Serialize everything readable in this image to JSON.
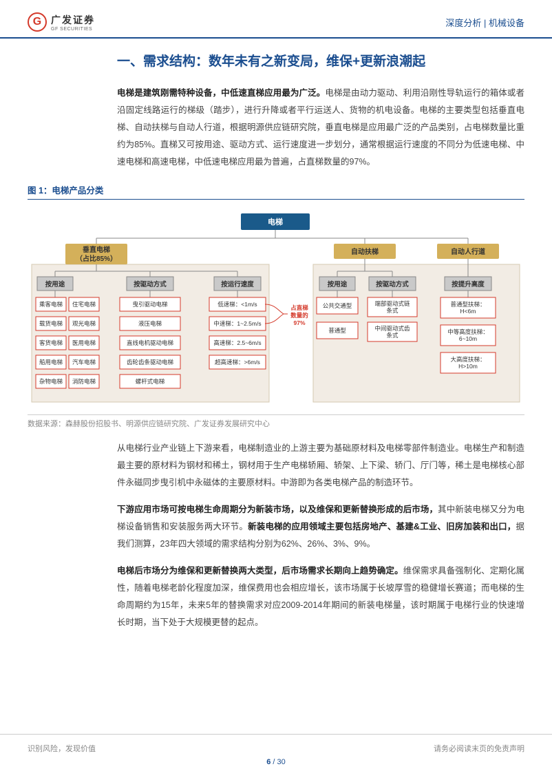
{
  "header": {
    "logo_cn": "广发证券",
    "logo_en": "GF SECURITIES",
    "logo_letter": "G",
    "right": "深度分析 | 机械设备"
  },
  "section_title": "一、需求结构：数年未有之新变局，维保+更新浪潮起",
  "para1_lead": "电梯是建筑刚需特种设备，中低速直梯应用最为广泛。",
  "para1_body": "电梯是由动力驱动、利用沿刚性导轨运行的箱体或者沿固定线路运行的梯级（踏步），进行升降或者平行运送人、货物的机电设备。电梯的主要类型包括垂直电梯、自动扶梯与自动人行道，根据明源供应链研究院，垂直电梯是应用最广泛的产品类别，占电梯数量比重约为85%。直梯又可按用途、驱动方式、运行速度进一步划分，通常根据运行速度的不同分为低速电梯、中速电梯和高速电梯，中低速电梯应用最为普遍，占直梯数量的97%。",
  "fig1_label": "图 1：电梯产品分类",
  "fig1_source": "数据来源：森赫股份招股书、明源供应链研究院、广发证券发展研究中心",
  "diagram": {
    "root": "电梯",
    "cat1": {
      "l1": "垂直电梯",
      "l2": "（占比85%）"
    },
    "cat2": "自动扶梯",
    "cat3": "自动人行道",
    "sub": {
      "s1": "按用途",
      "s2": "按驱动方式",
      "s3": "按运行速度",
      "s4": "按用途",
      "s5": "按驱动方式",
      "s6": "按提升高度"
    },
    "vert_use": [
      "乘客电梯",
      "住宅电梯",
      "载货电梯",
      "观光电梯",
      "客货电梯",
      "医用电梯",
      "船用电梯",
      "汽车电梯",
      "杂物电梯",
      "消防电梯"
    ],
    "vert_drive": [
      "曳引驱动电梯",
      "液压电梯",
      "直线电机驱动电梯",
      "齿轮齿条驱动电梯",
      "螺杆式电梯"
    ],
    "vert_speed": [
      {
        "l": "低速梯：<1m/s"
      },
      {
        "l": "中速梯：1~2.5m/s"
      },
      {
        "l": "高速梯：2.5~6m/s"
      },
      {
        "l": "超高速梯：>6m/s"
      }
    ],
    "esc_use": [
      "公共交通型",
      "普通型"
    ],
    "esc_drive": [
      {
        "l1": "端部驱动式链",
        "l2": "条式"
      },
      {
        "l1": "中间驱动式齿",
        "l2": "条式"
      }
    ],
    "walk_h": [
      {
        "l1": "普通型扶梯：",
        "l2": "H<6m"
      },
      {
        "l1": "中等高度扶梯：",
        "l2": "6~10m"
      },
      {
        "l1": "大高度扶梯：",
        "l2": "H>10m"
      }
    ],
    "annotation": {
      "l1": "占直梯",
      "l2": "数量的",
      "l3": "97%"
    }
  },
  "para2": "从电梯行业产业链上下游来看，电梯制造业的上游主要为基础原材料及电梯零部件制造业。电梯生产和制造最主要的原材料为钢材和稀土，钢材用于生产电梯轿厢、轿架、上下梁、轿门、厅门等，稀土是电梯核心部件永磁同步曳引机中永磁体的主要原材料。中游即为各类电梯产品的制造环节。",
  "para3_lead1": "下游应用市场可按电梯生命周期分为新装市场，以及维保和更新替换形成的后市场，",
  "para3_mid": "其中新装电梯又分为电梯设备销售和安装服务两大环节。",
  "para3_lead2": "新装电梯的应用领域主要包括房地产、基建&工业、旧房加装和出口，",
  "para3_body": "据我们测算，23年四大领域的需求结构分别为62%、26%、3%、9%。",
  "para4_lead": "电梯后市场分为维保和更新替换两大类型，后市场需求长期向上趋势确定。",
  "para4_body": "维保需求具备强制化、定期化属性，随着电梯老龄化程度加深，维保费用也会相应增长，该市场属于长坡厚雪的稳健增长赛道；而电梯的生命周期约为15年，未来5年的替换需求对应2009-2014年期间的新装电梯量，该时期属于电梯行业的快速增长时期，当下处于大规模更替的起点。",
  "footer": {
    "left": "识别风险，发现价值",
    "right": "请务必阅读末页的免责声明",
    "page": "6",
    "total": "30"
  }
}
